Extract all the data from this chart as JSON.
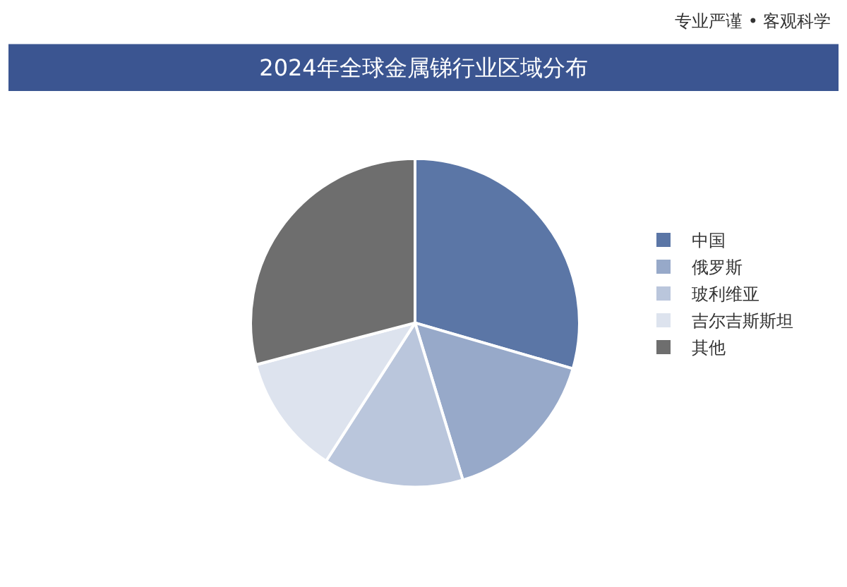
{
  "chart_data": {
    "type": "pie",
    "title": "2024年全球金属锑行业区域分布",
    "categories": [
      "中国",
      "俄罗斯",
      "玻利维亚",
      "吉尔吉斯斯坦",
      "其他"
    ],
    "values": [
      29.5,
      15.8,
      13.8,
      11.8,
      29.1
    ],
    "colors": [
      "#5b76a6",
      "#97a9c9",
      "#bac6dc",
      "#dde3ee",
      "#6e6e6e"
    ],
    "legend": "right",
    "annotations": [
      "专业严谨 • 客观科学"
    ]
  }
}
